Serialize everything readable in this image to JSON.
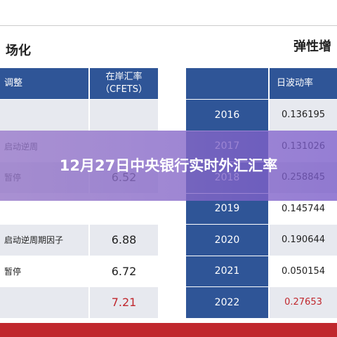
{
  "left_heading": "场化",
  "right_heading": "弹性增",
  "overlay_title": "12月27日中央银行实时外汇汇率",
  "left_table": {
    "headers": [
      "调整",
      "在岸汇率\n（CFETS）"
    ],
    "rows": [
      {
        "slot": 1,
        "label": "启动逆周"
      },
      {
        "slot": 2,
        "label": "暂停",
        "rate": "6.52"
      },
      {
        "slot": 4,
        "label": "启动逆周期因子",
        "rate": "6.88"
      },
      {
        "slot": 5,
        "label": "暂停",
        "rate": "6.72"
      },
      {
        "slot": 6,
        "rate": "7.21",
        "highlight": true
      }
    ]
  },
  "right_table": {
    "headers": [
      "日波动率"
    ],
    "rows": [
      [
        "2016",
        "0.136195"
      ],
      [
        "2017",
        "0.131026"
      ],
      [
        "2018",
        "0.258845"
      ],
      [
        "2019",
        "0.145744"
      ],
      [
        "2020",
        "0.190644"
      ],
      [
        "2021",
        "0.050154"
      ],
      [
        "2022",
        "0.27653"
      ]
    ]
  }
}
